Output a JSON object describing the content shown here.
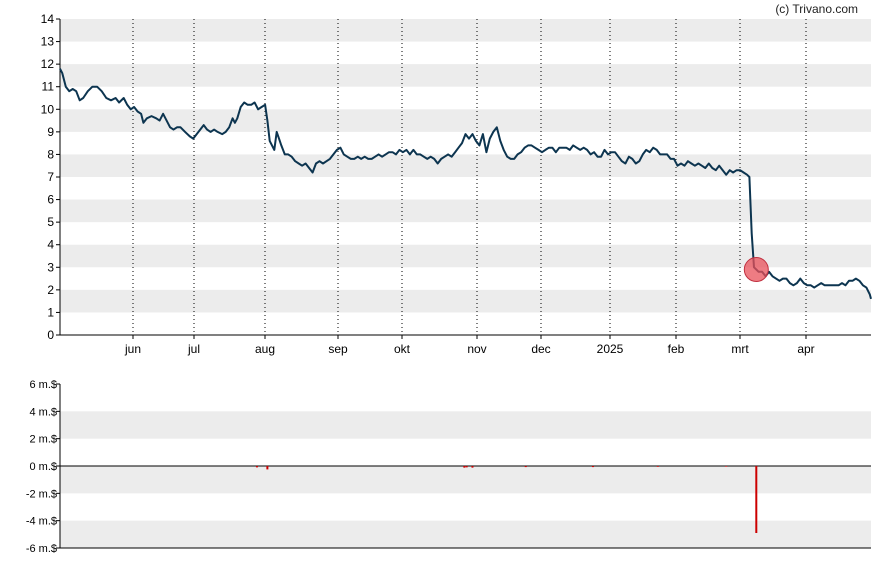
{
  "credit": "(c) Trivano.com",
  "colors": {
    "band": "#ececec",
    "price_line": "#0d3550",
    "event_marker": "#e8505a",
    "volume_bar": "#cc0000",
    "axis": "#000000"
  },
  "chart_data": [
    {
      "type": "line",
      "title": "",
      "xlabel": "",
      "ylabel": "",
      "ylim": [
        0,
        14
      ],
      "y_ticks": [
        "0",
        "1",
        "2",
        "3",
        "4",
        "5",
        "6",
        "7",
        "8",
        "9",
        "10",
        "11",
        "12",
        "13",
        "14"
      ],
      "x_ticks": [
        "jun",
        "jul",
        "aug",
        "sep",
        "okt",
        "nov",
        "dec",
        "2025",
        "feb",
        "mrt",
        "apr"
      ],
      "grid": "alternating horizontal bands, dotted vertical lines at month ticks",
      "series": [
        {
          "values": [
            [
              0,
              11.8
            ],
            [
              2,
              11.6
            ],
            [
              5,
              11.0
            ],
            [
              8,
              10.8
            ],
            [
              11,
              10.9
            ],
            [
              14,
              10.8
            ],
            [
              17,
              10.4
            ],
            [
              20,
              10.5
            ],
            [
              24,
              10.8
            ],
            [
              28,
              11.0
            ],
            [
              32,
              11.0
            ],
            [
              36,
              10.8
            ],
            [
              40,
              10.5
            ],
            [
              44,
              10.4
            ],
            [
              48,
              10.5
            ],
            [
              51,
              10.3
            ],
            [
              55,
              10.5
            ],
            [
              58,
              10.2
            ],
            [
              61,
              10.0
            ],
            [
              64,
              10.1
            ],
            [
              67,
              9.9
            ],
            [
              70,
              9.8
            ],
            [
              72,
              9.4
            ],
            [
              75,
              9.6
            ],
            [
              79,
              9.7
            ],
            [
              83,
              9.6
            ],
            [
              86,
              9.5
            ],
            [
              89,
              9.8
            ],
            [
              92,
              9.5
            ],
            [
              95,
              9.2
            ],
            [
              98,
              9.1
            ],
            [
              101,
              9.2
            ],
            [
              104,
              9.2
            ],
            [
              108,
              9.0
            ],
            [
              112,
              8.8
            ],
            [
              115,
              8.7
            ],
            [
              118,
              8.9
            ],
            [
              121,
              9.1
            ],
            [
              124,
              9.3
            ],
            [
              127,
              9.1
            ],
            [
              130,
              9.0
            ],
            [
              133,
              9.1
            ],
            [
              136,
              9.0
            ],
            [
              140,
              8.9
            ],
            [
              143,
              9.0
            ],
            [
              146,
              9.2
            ],
            [
              149,
              9.6
            ],
            [
              151,
              9.4
            ],
            [
              153,
              9.6
            ],
            [
              156,
              10.1
            ],
            [
              159,
              10.3
            ],
            [
              162,
              10.2
            ],
            [
              165,
              10.2
            ],
            [
              168,
              10.3
            ],
            [
              171,
              10.0
            ],
            [
              174,
              10.1
            ],
            [
              177,
              10.2
            ],
            [
              179,
              9.5
            ],
            [
              181,
              8.6
            ],
            [
              183,
              8.4
            ],
            [
              185,
              8.2
            ],
            [
              187,
              9.0
            ],
            [
              189,
              8.7
            ],
            [
              191,
              8.4
            ],
            [
              194,
              8.0
            ],
            [
              197,
              8.0
            ],
            [
              200,
              7.9
            ],
            [
              203,
              7.7
            ],
            [
              206,
              7.6
            ],
            [
              209,
              7.5
            ],
            [
              212,
              7.6
            ],
            [
              215,
              7.4
            ],
            [
              218,
              7.2
            ],
            [
              221,
              7.6
            ],
            [
              224,
              7.7
            ],
            [
              227,
              7.6
            ],
            [
              230,
              7.7
            ],
            [
              233,
              7.8
            ],
            [
              236,
              8.0
            ],
            [
              239,
              8.2
            ],
            [
              242,
              8.3
            ],
            [
              245,
              8.0
            ],
            [
              248,
              7.9
            ],
            [
              251,
              7.8
            ],
            [
              254,
              7.8
            ],
            [
              257,
              7.9
            ],
            [
              260,
              7.8
            ],
            [
              263,
              7.9
            ],
            [
              266,
              7.8
            ],
            [
              269,
              7.8
            ],
            [
              272,
              7.9
            ],
            [
              275,
              8.0
            ],
            [
              278,
              7.9
            ],
            [
              281,
              8.0
            ],
            [
              284,
              8.1
            ],
            [
              287,
              8.1
            ],
            [
              290,
              8.0
            ],
            [
              293,
              8.2
            ],
            [
              296,
              8.1
            ],
            [
              299,
              8.2
            ],
            [
              302,
              8.0
            ],
            [
              305,
              8.2
            ],
            [
              308,
              8.0
            ],
            [
              311,
              8.0
            ],
            [
              314,
              7.9
            ],
            [
              317,
              7.8
            ],
            [
              320,
              7.9
            ],
            [
              323,
              7.8
            ],
            [
              326,
              7.6
            ],
            [
              329,
              7.8
            ],
            [
              332,
              7.9
            ],
            [
              335,
              8.0
            ],
            [
              338,
              7.9
            ],
            [
              341,
              8.1
            ],
            [
              344,
              8.3
            ],
            [
              347,
              8.5
            ],
            [
              350,
              8.9
            ],
            [
              353,
              8.7
            ],
            [
              356,
              8.9
            ],
            [
              359,
              8.6
            ],
            [
              362,
              8.4
            ],
            [
              365,
              8.9
            ],
            [
              368,
              8.1
            ],
            [
              371,
              8.7
            ],
            [
              374,
              9.0
            ],
            [
              377,
              9.2
            ],
            [
              380,
              8.6
            ],
            [
              383,
              8.2
            ],
            [
              386,
              7.9
            ],
            [
              389,
              7.8
            ],
            [
              392,
              7.8
            ],
            [
              395,
              8.0
            ],
            [
              398,
              8.1
            ],
            [
              401,
              8.3
            ],
            [
              404,
              8.4
            ],
            [
              407,
              8.4
            ],
            [
              410,
              8.3
            ],
            [
              413,
              8.2
            ],
            [
              416,
              8.1
            ],
            [
              419,
              8.2
            ],
            [
              422,
              8.3
            ],
            [
              425,
              8.3
            ],
            [
              428,
              8.1
            ],
            [
              431,
              8.3
            ],
            [
              434,
              8.3
            ],
            [
              437,
              8.3
            ],
            [
              440,
              8.2
            ],
            [
              443,
              8.4
            ],
            [
              446,
              8.3
            ],
            [
              449,
              8.2
            ],
            [
              452,
              8.3
            ],
            [
              455,
              8.2
            ],
            [
              458,
              8.0
            ],
            [
              461,
              8.1
            ],
            [
              464,
              7.9
            ],
            [
              467,
              7.9
            ],
            [
              470,
              8.2
            ],
            [
              473,
              8.0
            ],
            [
              476,
              8.1
            ],
            [
              479,
              8.1
            ],
            [
              482,
              7.9
            ],
            [
              485,
              7.7
            ],
            [
              488,
              7.6
            ],
            [
              491,
              7.9
            ],
            [
              494,
              7.8
            ],
            [
              497,
              7.6
            ],
            [
              500,
              7.7
            ],
            [
              503,
              8.0
            ],
            [
              506,
              8.2
            ],
            [
              509,
              8.1
            ],
            [
              512,
              8.3
            ],
            [
              515,
              8.2
            ],
            [
              518,
              8.0
            ],
            [
              521,
              8.0
            ],
            [
              524,
              8.0
            ],
            [
              527,
              7.8
            ],
            [
              530,
              7.8
            ],
            [
              533,
              7.5
            ],
            [
              536,
              7.6
            ],
            [
              539,
              7.5
            ],
            [
              542,
              7.7
            ],
            [
              545,
              7.6
            ],
            [
              548,
              7.5
            ],
            [
              551,
              7.6
            ],
            [
              554,
              7.5
            ],
            [
              557,
              7.4
            ],
            [
              560,
              7.6
            ],
            [
              563,
              7.4
            ],
            [
              566,
              7.3
            ],
            [
              569,
              7.5
            ],
            [
              572,
              7.3
            ],
            [
              575,
              7.1
            ],
            [
              578,
              7.3
            ],
            [
              581,
              7.2
            ],
            [
              584,
              7.3
            ],
            [
              587,
              7.3
            ],
            [
              590,
              7.2
            ],
            [
              593,
              7.1
            ],
            [
              595,
              7.0
            ],
            [
              597,
              4.5
            ],
            [
              599,
              3.0
            ],
            [
              601,
              2.9
            ],
            [
              603,
              2.8
            ],
            [
              606,
              2.8
            ],
            [
              609,
              2.6
            ],
            [
              612,
              2.8
            ],
            [
              615,
              2.6
            ],
            [
              618,
              2.5
            ],
            [
              621,
              2.4
            ],
            [
              624,
              2.5
            ],
            [
              627,
              2.5
            ],
            [
              630,
              2.3
            ],
            [
              633,
              2.2
            ],
            [
              636,
              2.3
            ],
            [
              639,
              2.5
            ],
            [
              642,
              2.3
            ],
            [
              645,
              2.2
            ],
            [
              648,
              2.2
            ],
            [
              651,
              2.1
            ],
            [
              654,
              2.2
            ],
            [
              657,
              2.3
            ],
            [
              660,
              2.2
            ],
            [
              663,
              2.2
            ],
            [
              666,
              2.2
            ],
            [
              669,
              2.2
            ],
            [
              672,
              2.2
            ],
            [
              675,
              2.3
            ],
            [
              678,
              2.2
            ],
            [
              681,
              2.4
            ],
            [
              684,
              2.4
            ],
            [
              687,
              2.5
            ],
            [
              690,
              2.4
            ],
            [
              693,
              2.2
            ],
            [
              696,
              2.1
            ],
            [
              699,
              1.8
            ],
            [
              700,
              1.6
            ]
          ],
          "x_range": [
            0,
            700
          ]
        }
      ],
      "annotations": [
        {
          "type": "marker",
          "x": 601,
          "y": 2.9
        }
      ]
    },
    {
      "type": "bar",
      "title": "",
      "ylim": [
        -6,
        6
      ],
      "y_ticks": [
        "6 m.$",
        "4 m.$",
        "2 m.$",
        "0 m.$",
        "-2 m.$",
        "-4 m.$",
        "-6 m.$"
      ],
      "y_tick_values": [
        6,
        4,
        2,
        0,
        -2,
        -4,
        -6
      ],
      "grid": "alternating horizontal bands",
      "series": [
        {
          "values": [
            [
              170,
              -0.1
            ],
            [
              179,
              -0.25
            ],
            [
              349,
              -0.12
            ],
            [
              351,
              -0.1
            ],
            [
              356,
              -0.12
            ],
            [
              402,
              -0.08
            ],
            [
              460,
              -0.08
            ],
            [
              516,
              -0.06
            ],
            [
              575,
              -0.05
            ],
            [
              601,
              -4.9
            ]
          ]
        }
      ]
    }
  ]
}
